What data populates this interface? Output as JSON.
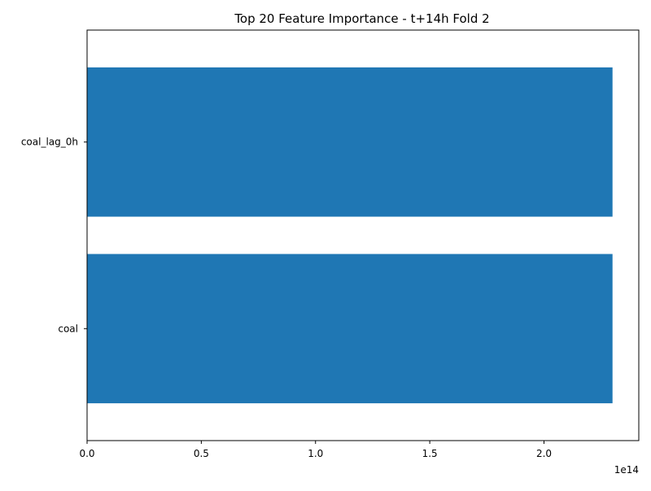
{
  "chart_data": {
    "type": "bar",
    "orientation": "horizontal",
    "title": "Top 20 Feature Importance - t+14h Fold 2",
    "xlabel": "",
    "ylabel": "",
    "categories": [
      "coal_lag_0h",
      "coal"
    ],
    "values": [
      230000000000000,
      230000000000000
    ],
    "xlim": [
      0,
      241500000000000
    ],
    "x_ticks": [
      0,
      50000000000000,
      100000000000000,
      150000000000000,
      200000000000000
    ],
    "x_tick_labels": [
      "0.0",
      "0.5",
      "1.0",
      "1.5",
      "2.0"
    ],
    "x_offset_label": "1e14",
    "bar_color": "#1f77b4",
    "grid": false,
    "legend": "none"
  }
}
